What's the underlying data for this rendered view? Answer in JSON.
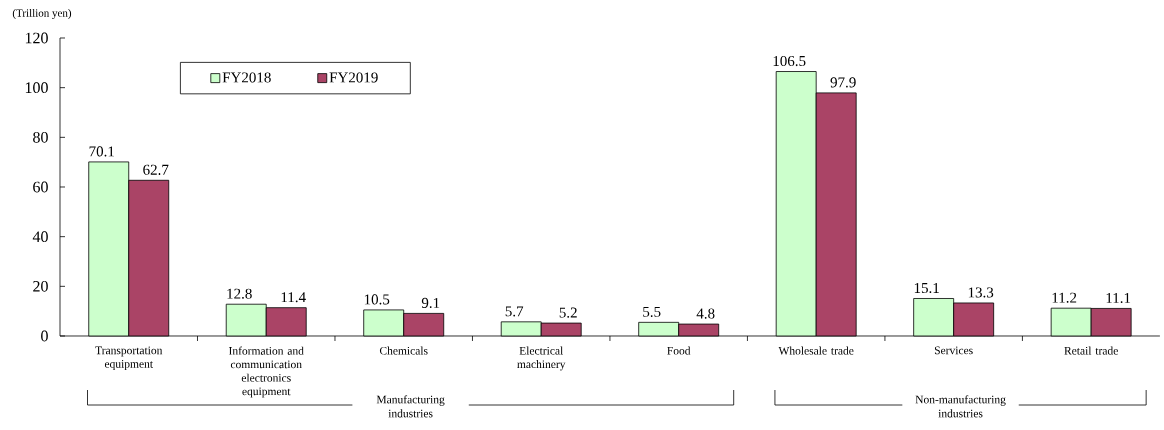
{
  "chart_data": {
    "type": "bar",
    "ylabel": "(Trillion yen)",
    "categories": [
      "Transportation equipment",
      "Information and communication electronics equipment",
      "Chemicals",
      "Electrical machinery",
      "Food",
      "Wholesale trade",
      "Services",
      "Retail trade"
    ],
    "series": [
      {
        "name": "FY2018",
        "color": "#ccffcc",
        "values": [
          70.1,
          12.8,
          10.5,
          5.7,
          5.5,
          106.5,
          15.1,
          11.2
        ]
      },
      {
        "name": "FY2019",
        "color": "#aa4466",
        "values": [
          62.7,
          11.4,
          9.1,
          5.2,
          4.8,
          97.9,
          13.3,
          11.1
        ]
      }
    ],
    "ylim": [
      0,
      120
    ],
    "yticks": [
      0,
      20,
      40,
      60,
      80,
      100,
      120
    ],
    "data_labels": true,
    "legend": "top left",
    "annotations": [
      "Manufacturing industries",
      "Non-manufacturing industries"
    ]
  }
}
